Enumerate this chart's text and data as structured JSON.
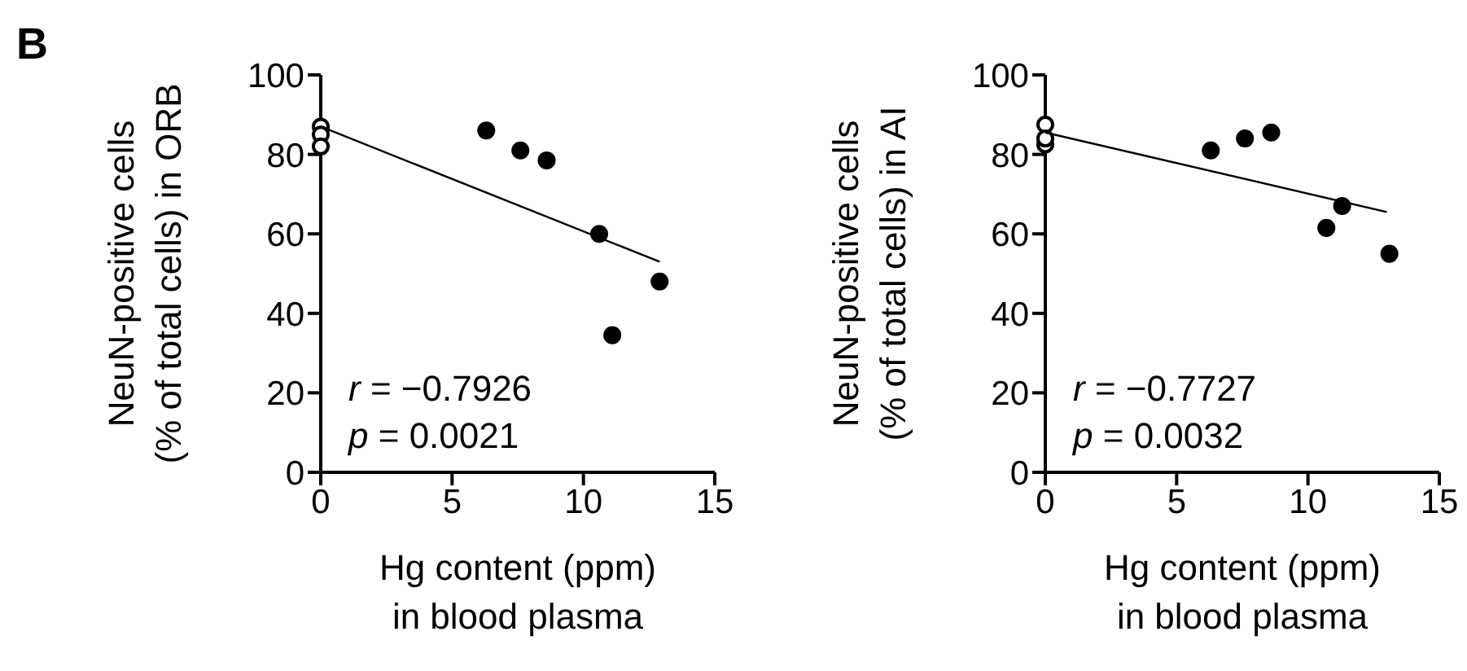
{
  "chart_data": [
    {
      "type": "scatter",
      "annotations": [
        "B",
        "r = −0.7926",
        "p = 0.0021"
      ],
      "xlabel": "Hg content (ppm)\nin blood plasma",
      "ylabel": "NeuN-positive cells\n(% of total cells) in ORB",
      "xlim": [
        0,
        15
      ],
      "xticks": [
        0,
        5,
        10,
        15
      ],
      "ylim": [
        0,
        100
      ],
      "yticks": [
        0,
        20,
        40,
        60,
        80,
        100
      ],
      "grid": false,
      "legend": false,
      "marker": "circle",
      "series": [
        {
          "color": "#ffffff",
          "x": [
            0,
            0,
            0
          ],
          "values": [
            87,
            85,
            82
          ]
        },
        {
          "color": "#000000",
          "x": [
            6.3,
            7.6,
            8.6,
            10.6,
            11.1,
            12.9
          ],
          "values": [
            86,
            81,
            78.5,
            60,
            34.5,
            48
          ]
        },
        {
          "type": "line",
          "marker": "none",
          "color": "#000000",
          "x": [
            0,
            12.9
          ],
          "values": [
            87,
            53
          ]
        }
      ]
    },
    {
      "type": "scatter",
      "annotations": [
        "r = −0.7727",
        "p = 0.0032"
      ],
      "xlabel": "Hg content (ppm)\nin blood plasma",
      "ylabel": "NeuN-positive cells\n(% of total cells) in AI",
      "xlim": [
        0,
        15
      ],
      "xticks": [
        0,
        5,
        10,
        15
      ],
      "ylim": [
        0,
        100
      ],
      "yticks": [
        0,
        20,
        40,
        60,
        80,
        100
      ],
      "grid": false,
      "legend": false,
      "marker": "circle",
      "series": [
        {
          "color": "#ffffff",
          "x": [
            0,
            0,
            0
          ],
          "values": [
            87.5,
            82.5,
            84
          ]
        },
        {
          "color": "#000000",
          "x": [
            6.3,
            7.6,
            8.6,
            10.7,
            11.3,
            13.1
          ],
          "values": [
            81,
            84,
            85.5,
            61.5,
            67,
            55
          ]
        },
        {
          "type": "line",
          "marker": "none",
          "color": "#000000",
          "x": [
            0,
            13
          ],
          "values": [
            85.5,
            65.5
          ]
        }
      ]
    }
  ]
}
